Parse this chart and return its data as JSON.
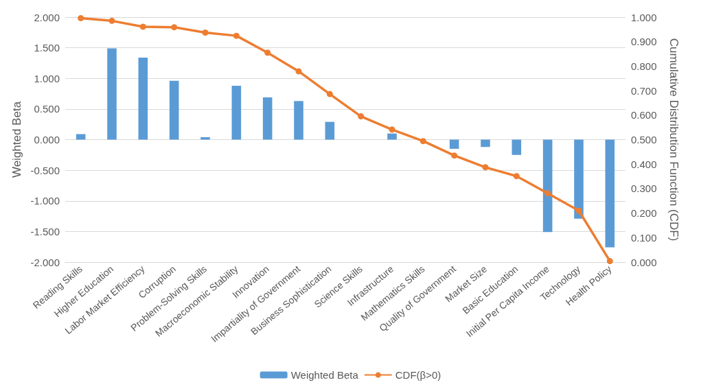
{
  "chart_data": {
    "type": "bar",
    "ylabel": "Weighted Beta",
    "y2label": "Cumulative Distribution Function (CDF)",
    "categories": [
      "Reading Skills",
      "Higher Education",
      "Labor Market Efficiency",
      "Corruption",
      "Problem-Solving Skills",
      "Macroeconomic Stability",
      "Innovation",
      "Impartiality of Government",
      "Business Sophistication",
      "Science Skills",
      "Infrastructure",
      "Mathematics Skills",
      "Quality of Government",
      "Market Size",
      "Basic Education",
      "Initial Per Capita Income",
      "Technology",
      "Health Policy"
    ],
    "series": [
      {
        "name": "Weighted Beta",
        "color": "#5b9bd5",
        "values": [
          0.09,
          1.49,
          1.34,
          0.96,
          0.04,
          0.88,
          0.69,
          0.63,
          0.29,
          0.0,
          0.1,
          0.0,
          -0.15,
          -0.12,
          -0.25,
          -1.51,
          -1.29,
          -1.76
        ]
      },
      {
        "name": "CDF(β>0)",
        "type": "line",
        "axis": "y2",
        "color": "#ed7d31",
        "marker": "circle",
        "values": [
          0.996,
          0.985,
          0.961,
          0.959,
          0.937,
          0.924,
          0.855,
          0.779,
          0.686,
          0.595,
          0.541,
          0.494,
          0.435,
          0.387,
          0.351,
          0.281,
          0.21,
          0.004
        ]
      }
    ],
    "ylim": [
      -2,
      2
    ],
    "yticks": [
      {
        "value": -2,
        "label": "-2.000"
      },
      {
        "value": -1.5,
        "label": "-1.500"
      },
      {
        "value": -1,
        "label": "-1.000"
      },
      {
        "value": -0.5,
        "label": "-0.500"
      },
      {
        "value": 0,
        "label": "0.000"
      },
      {
        "value": 0.5,
        "label": "0.500"
      },
      {
        "value": 1,
        "label": "1.000"
      },
      {
        "value": 1.5,
        "label": "1.500"
      },
      {
        "value": 2,
        "label": "2.000"
      }
    ],
    "y2lim": [
      0,
      1
    ],
    "y2ticks": [
      {
        "value": 0,
        "label": "0.000"
      },
      {
        "value": 0.1,
        "label": "0.100"
      },
      {
        "value": 0.2,
        "label": "0.200"
      },
      {
        "value": 0.3,
        "label": "0.300"
      },
      {
        "value": 0.4,
        "label": "0.400"
      },
      {
        "value": 0.5,
        "label": "0.500"
      },
      {
        "value": 0.6,
        "label": "0.600"
      },
      {
        "value": 0.7,
        "label": "0.700"
      },
      {
        "value": 0.8,
        "label": "0.800"
      },
      {
        "value": 0.9,
        "label": "0.900"
      },
      {
        "value": 1,
        "label": "1.000"
      }
    ],
    "grid": "y",
    "legend": "bottom"
  }
}
